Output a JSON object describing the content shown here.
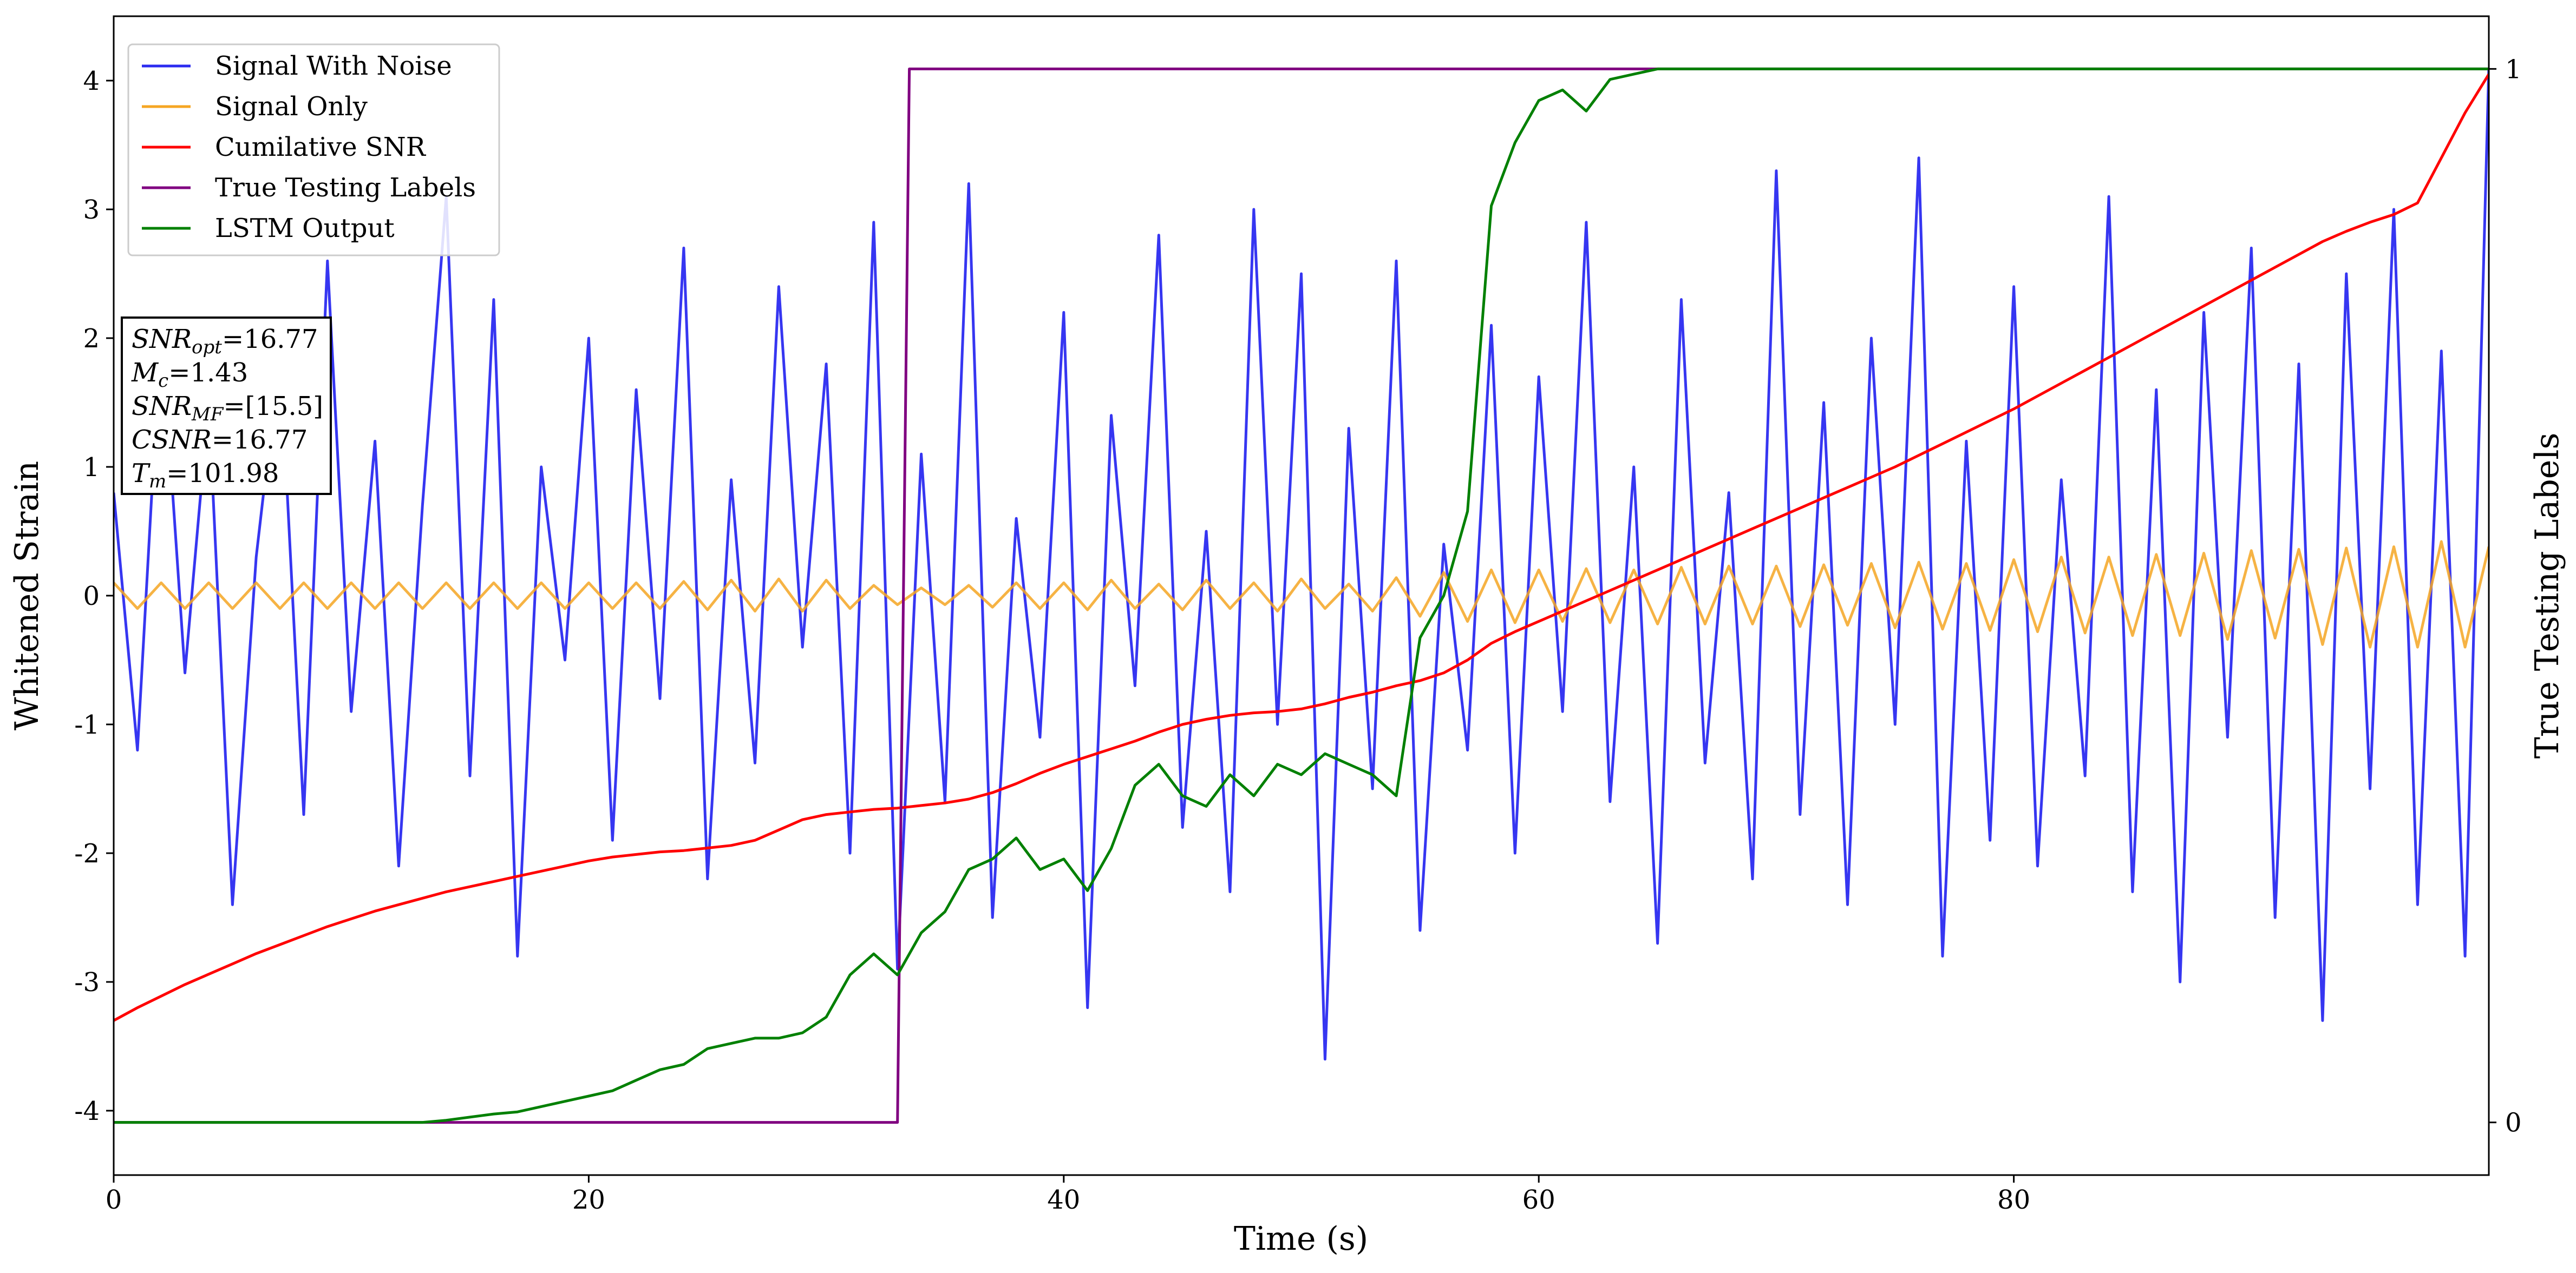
{
  "chart_data": {
    "type": "line",
    "xlabel": "Time (s)",
    "ylabel": "Whitened Strain",
    "y2label": "True Testing Labels",
    "xlim": [
      0,
      100
    ],
    "ylim": [
      -4.5,
      4.5
    ],
    "y2lim": [
      -0.05,
      1.05
    ],
    "xticks": [
      0,
      20,
      40,
      60,
      80
    ],
    "yticks": [
      -4,
      -3,
      -2,
      -1,
      0,
      1,
      2,
      3,
      4
    ],
    "y2ticks": [
      0,
      1
    ],
    "legend": "upper left",
    "x": [
      0,
      1,
      2,
      3,
      4,
      5,
      6,
      7,
      8,
      9,
      10,
      11,
      12,
      13,
      14,
      15,
      16,
      17,
      18,
      19,
      20,
      21,
      22,
      23,
      24,
      25,
      26,
      27,
      28,
      29,
      30,
      31,
      32,
      33,
      34,
      35,
      36,
      37,
      38,
      39,
      40,
      41,
      42,
      43,
      44,
      45,
      46,
      47,
      48,
      49,
      50,
      51,
      52,
      53,
      54,
      55,
      56,
      57,
      58,
      59,
      60,
      61,
      62,
      63,
      64,
      65,
      66,
      67,
      68,
      69,
      70,
      71,
      72,
      73,
      74,
      75,
      76,
      77,
      78,
      79,
      80,
      81,
      82,
      83,
      84,
      85,
      86,
      87,
      88,
      89,
      90,
      91,
      92,
      93,
      94,
      95,
      96,
      97,
      98,
      99,
      100
    ],
    "series": [
      {
        "name": "Signal With Noise",
        "color": "#2b2bf0",
        "values": [
          0.8,
          -1.2,
          2.1,
          -0.6,
          1.5,
          -2.4,
          0.3,
          1.9,
          -1.7,
          2.6,
          -0.9,
          1.2,
          -2.1,
          0.7,
          3.1,
          -1.4,
          2.3,
          -2.8,
          1.0,
          -0.5,
          2.0,
          -1.9,
          1.6,
          -0.8,
          2.7,
          -2.2,
          0.9,
          -1.3,
          2.4,
          -0.4,
          1.8,
          -2.0,
          2.9,
          -2.9,
          1.1,
          -1.6,
          3.2,
          -2.5,
          0.6,
          -1.1,
          2.2,
          -3.2,
          1.4,
          -0.7,
          2.8,
          -1.8,
          0.5,
          -2.3,
          3.0,
          -1.0,
          2.5,
          -3.6,
          1.3,
          -1.5,
          2.6,
          -2.6,
          0.4,
          -1.2,
          2.1,
          -2.0,
          1.7,
          -0.9,
          2.9,
          -1.6,
          1.0,
          -2.7,
          2.3,
          -1.3,
          0.8,
          -2.2,
          3.3,
          -1.7,
          1.5,
          -2.4,
          2.0,
          -1.0,
          3.4,
          -2.8,
          1.2,
          -1.9,
          2.4,
          -2.1,
          0.9,
          -1.4,
          3.1,
          -2.3,
          1.6,
          -3.0,
          2.2,
          -1.1,
          2.7,
          -2.5,
          1.8,
          -3.3,
          2.5,
          -1.5,
          3.0,
          -2.4,
          1.9,
          -2.8,
          4.1
        ]
      },
      {
        "name": "Signal Only",
        "color": "#f5a623",
        "values": [
          0.1,
          -0.1,
          0.1,
          -0.1,
          0.1,
          -0.1,
          0.1,
          -0.1,
          0.1,
          -0.1,
          0.1,
          -0.1,
          0.1,
          -0.1,
          0.1,
          -0.1,
          0.1,
          -0.1,
          0.1,
          -0.1,
          0.1,
          -0.1,
          0.1,
          -0.1,
          0.11,
          -0.11,
          0.12,
          -0.12,
          0.13,
          -0.12,
          0.12,
          -0.1,
          0.08,
          -0.07,
          0.06,
          -0.07,
          0.08,
          -0.09,
          0.1,
          -0.1,
          0.1,
          -0.11,
          0.12,
          -0.1,
          0.09,
          -0.11,
          0.12,
          -0.1,
          0.1,
          -0.12,
          0.13,
          -0.1,
          0.09,
          -0.12,
          0.14,
          -0.16,
          0.18,
          -0.2,
          0.2,
          -0.21,
          0.2,
          -0.2,
          0.21,
          -0.21,
          0.2,
          -0.22,
          0.22,
          -0.22,
          0.23,
          -0.22,
          0.23,
          -0.24,
          0.24,
          -0.23,
          0.25,
          -0.25,
          0.26,
          -0.26,
          0.25,
          -0.27,
          0.28,
          -0.28,
          0.3,
          -0.29,
          0.3,
          -0.31,
          0.32,
          -0.31,
          0.33,
          -0.34,
          0.35,
          -0.33,
          0.36,
          -0.38,
          0.37,
          -0.4,
          0.38,
          -0.4,
          0.42,
          -0.4,
          0.38
        ]
      },
      {
        "name": "Cumilative SNR",
        "color": "#ff0000",
        "values": [
          -3.3,
          -3.2,
          -3.11,
          -3.02,
          -2.94,
          -2.86,
          -2.78,
          -2.71,
          -2.64,
          -2.57,
          -2.51,
          -2.45,
          -2.4,
          -2.35,
          -2.3,
          -2.26,
          -2.22,
          -2.18,
          -2.14,
          -2.1,
          -2.06,
          -2.03,
          -2.01,
          -1.99,
          -1.98,
          -1.96,
          -1.94,
          -1.9,
          -1.82,
          -1.74,
          -1.7,
          -1.68,
          -1.66,
          -1.65,
          -1.63,
          -1.61,
          -1.58,
          -1.53,
          -1.46,
          -1.38,
          -1.31,
          -1.25,
          -1.19,
          -1.13,
          -1.06,
          -1.0,
          -0.96,
          -0.93,
          -0.91,
          -0.9,
          -0.88,
          -0.84,
          -0.79,
          -0.75,
          -0.7,
          -0.66,
          -0.6,
          -0.5,
          -0.37,
          -0.28,
          -0.2,
          -0.12,
          -0.04,
          0.04,
          0.12,
          0.2,
          0.28,
          0.36,
          0.44,
          0.52,
          0.6,
          0.68,
          0.76,
          0.84,
          0.92,
          1.0,
          1.09,
          1.18,
          1.27,
          1.36,
          1.45,
          1.55,
          1.65,
          1.75,
          1.85,
          1.95,
          2.05,
          2.15,
          2.25,
          2.35,
          2.45,
          2.55,
          2.65,
          2.75,
          2.83,
          2.9,
          2.96,
          3.05,
          3.4,
          3.75,
          4.05
        ]
      },
      {
        "name": "True Testing Labels",
        "color": "#800080",
        "axis": "y2",
        "x": [
          0,
          33,
          33.5,
          100
        ],
        "values": [
          0,
          0,
          1,
          1
        ]
      },
      {
        "name": "LSTM Output",
        "color": "#008000",
        "axis": "y2",
        "values": [
          0,
          0,
          0,
          0,
          0,
          0,
          0,
          0,
          0,
          0,
          0,
          0,
          0,
          0,
          0.002,
          0.005,
          0.008,
          0.01,
          0.015,
          0.02,
          0.025,
          0.03,
          0.04,
          0.05,
          0.055,
          0.07,
          0.075,
          0.08,
          0.08,
          0.085,
          0.1,
          0.14,
          0.16,
          0.14,
          0.18,
          0.2,
          0.24,
          0.25,
          0.27,
          0.24,
          0.25,
          0.22,
          0.26,
          0.32,
          0.34,
          0.31,
          0.3,
          0.33,
          0.31,
          0.34,
          0.33,
          0.35,
          0.34,
          0.33,
          0.31,
          0.46,
          0.5,
          0.58,
          0.87,
          0.93,
          0.97,
          0.98,
          0.96,
          0.99,
          0.995,
          1,
          1,
          1,
          1,
          1,
          1,
          1,
          1,
          1,
          1,
          1,
          1,
          1,
          1,
          1,
          1,
          1,
          1,
          1,
          1,
          1,
          1,
          1,
          1,
          1,
          1,
          1,
          1,
          1,
          1,
          1,
          1,
          1,
          1,
          1,
          1
        ]
      }
    ],
    "annotations": [
      {
        "base": "SNR",
        "sub": "opt",
        "text": "=16.77"
      },
      {
        "base": "M",
        "sub": "c",
        "text": "=1.43"
      },
      {
        "base": "SNR",
        "sub": "MF",
        "text": "=[15.5]"
      },
      {
        "base": "CSNR",
        "text": "=16.77"
      },
      {
        "base": "T",
        "sub": "m",
        "text": "=101.98"
      }
    ]
  }
}
